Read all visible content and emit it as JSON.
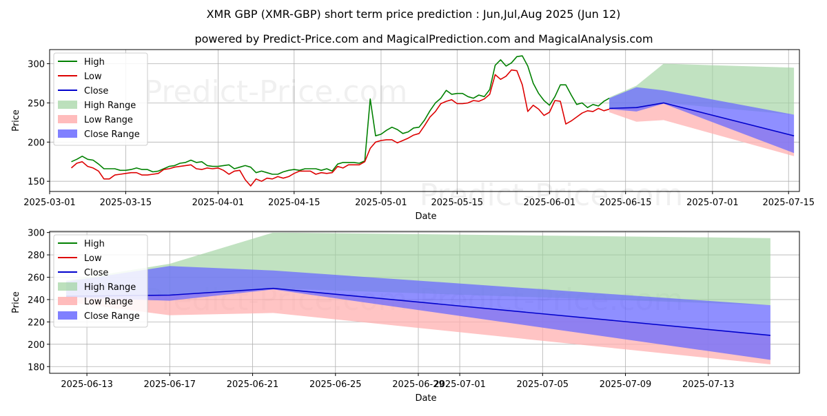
{
  "title_line1": "XMR GBP (XMR-GBP) short term price prediction : Jun,Jul,Aug 2025 (Jun 12)",
  "title_line2": "powered by Predict-Price.com and MagicalPrediction.com and MagicalAnalysis.com",
  "watermark": "Predict-Price.com",
  "colors": {
    "high": "#008000",
    "low": "#dd0000",
    "close": "#0000cc",
    "high_range": "#9fd39f",
    "low_range": "#ffb0b0",
    "close_range": "#6a6aff",
    "grid": "#b0b0b0"
  },
  "chart_data": [
    {
      "type": "line",
      "xlabel": "Date",
      "ylabel": "Price",
      "xlim": [
        "2025-03-01",
        "2025-07-17"
      ],
      "ylim": [
        137,
        318
      ],
      "x_ticks": [
        "2025-03-01",
        "2025-03-15",
        "2025-04-01",
        "2025-04-15",
        "2025-05-01",
        "2025-05-15",
        "2025-06-01",
        "2025-06-15",
        "2025-07-01",
        "2025-07-15"
      ],
      "y_ticks": [
        150,
        200,
        250,
        300
      ],
      "legend": [
        "High",
        "Low",
        "Close",
        "High Range",
        "Low Range",
        "Close Range"
      ],
      "legend_position": "top-left",
      "grid": true,
      "series": [
        {
          "name": "High",
          "x": [
            "2025-03-05",
            "2025-03-06",
            "2025-03-07",
            "2025-03-08",
            "2025-03-09",
            "2025-03-10",
            "2025-03-11",
            "2025-03-12",
            "2025-03-13",
            "2025-03-14",
            "2025-03-15",
            "2025-03-16",
            "2025-03-17",
            "2025-03-18",
            "2025-03-19",
            "2025-03-20",
            "2025-03-21",
            "2025-03-22",
            "2025-03-23",
            "2025-03-24",
            "2025-03-25",
            "2025-03-26",
            "2025-03-27",
            "2025-03-28",
            "2025-03-29",
            "2025-03-30",
            "2025-03-31",
            "2025-04-01",
            "2025-04-02",
            "2025-04-03",
            "2025-04-04",
            "2025-04-05",
            "2025-04-06",
            "2025-04-07",
            "2025-04-08",
            "2025-04-09",
            "2025-04-10",
            "2025-04-11",
            "2025-04-12",
            "2025-04-13",
            "2025-04-14",
            "2025-04-15",
            "2025-04-16",
            "2025-04-17",
            "2025-04-18",
            "2025-04-19",
            "2025-04-20",
            "2025-04-21",
            "2025-04-22",
            "2025-04-23",
            "2025-04-24",
            "2025-04-25",
            "2025-04-26",
            "2025-04-27",
            "2025-04-28",
            "2025-04-29",
            "2025-04-30",
            "2025-05-01",
            "2025-05-02",
            "2025-05-03",
            "2025-05-04",
            "2025-05-05",
            "2025-05-06",
            "2025-05-07",
            "2025-05-08",
            "2025-05-09",
            "2025-05-10",
            "2025-05-11",
            "2025-05-12",
            "2025-05-13",
            "2025-05-14",
            "2025-05-15",
            "2025-05-16",
            "2025-05-17",
            "2025-05-18",
            "2025-05-19",
            "2025-05-20",
            "2025-05-21",
            "2025-05-22",
            "2025-05-23",
            "2025-05-24",
            "2025-05-25",
            "2025-05-26",
            "2025-05-27",
            "2025-05-28",
            "2025-05-29",
            "2025-05-30",
            "2025-05-31",
            "2025-06-01",
            "2025-06-02",
            "2025-06-03",
            "2025-06-04",
            "2025-06-05",
            "2025-06-06",
            "2025-06-07",
            "2025-06-08",
            "2025-06-09",
            "2025-06-10",
            "2025-06-11",
            "2025-06-12"
          ],
          "values": [
            175,
            178,
            182,
            178,
            177,
            172,
            166,
            166,
            166,
            164,
            164,
            165,
            167,
            165,
            165,
            162,
            163,
            166,
            169,
            170,
            173,
            174,
            177,
            174,
            175,
            170,
            169,
            169,
            170,
            171,
            166,
            168,
            170,
            168,
            161,
            163,
            161,
            159,
            159,
            162,
            164,
            165,
            164,
            166,
            166,
            166,
            164,
            166,
            163,
            172,
            174,
            174,
            174,
            173,
            176,
            255,
            208,
            210,
            215,
            219,
            216,
            211,
            213,
            218,
            219,
            228,
            240,
            250,
            256,
            266,
            261,
            262,
            262,
            258,
            256,
            260,
            258,
            267,
            298,
            305,
            297,
            301,
            309,
            310,
            297,
            275,
            262,
            253,
            247,
            258,
            273,
            273,
            260,
            248,
            250,
            244,
            248,
            246,
            252,
            256
          ]
        },
        {
          "name": "Low",
          "x": [
            "2025-03-05",
            "2025-03-06",
            "2025-03-07",
            "2025-03-08",
            "2025-03-09",
            "2025-03-10",
            "2025-03-11",
            "2025-03-12",
            "2025-03-13",
            "2025-03-14",
            "2025-03-15",
            "2025-03-16",
            "2025-03-17",
            "2025-03-18",
            "2025-03-19",
            "2025-03-20",
            "2025-03-21",
            "2025-03-22",
            "2025-03-23",
            "2025-03-24",
            "2025-03-25",
            "2025-03-26",
            "2025-03-27",
            "2025-03-28",
            "2025-03-29",
            "2025-03-30",
            "2025-03-31",
            "2025-04-01",
            "2025-04-02",
            "2025-04-03",
            "2025-04-04",
            "2025-04-05",
            "2025-04-06",
            "2025-04-07",
            "2025-04-08",
            "2025-04-09",
            "2025-04-10",
            "2025-04-11",
            "2025-04-12",
            "2025-04-13",
            "2025-04-14",
            "2025-04-15",
            "2025-04-16",
            "2025-04-17",
            "2025-04-18",
            "2025-04-19",
            "2025-04-20",
            "2025-04-21",
            "2025-04-22",
            "2025-04-23",
            "2025-04-24",
            "2025-04-25",
            "2025-04-26",
            "2025-04-27",
            "2025-04-28",
            "2025-04-29",
            "2025-04-30",
            "2025-05-01",
            "2025-05-02",
            "2025-05-03",
            "2025-05-04",
            "2025-05-05",
            "2025-05-06",
            "2025-05-07",
            "2025-05-08",
            "2025-05-09",
            "2025-05-10",
            "2025-05-11",
            "2025-05-12",
            "2025-05-13",
            "2025-05-14",
            "2025-05-15",
            "2025-05-16",
            "2025-05-17",
            "2025-05-18",
            "2025-05-19",
            "2025-05-20",
            "2025-05-21",
            "2025-05-22",
            "2025-05-23",
            "2025-05-24",
            "2025-05-25",
            "2025-05-26",
            "2025-05-27",
            "2025-05-28",
            "2025-05-29",
            "2025-05-30",
            "2025-05-31",
            "2025-06-01",
            "2025-06-02",
            "2025-06-03",
            "2025-06-04",
            "2025-06-05",
            "2025-06-06",
            "2025-06-07",
            "2025-06-08",
            "2025-06-09",
            "2025-06-10",
            "2025-06-11",
            "2025-06-12"
          ],
          "values": [
            167,
            173,
            175,
            169,
            167,
            163,
            153,
            153,
            158,
            159,
            160,
            161,
            161,
            158,
            158,
            159,
            160,
            165,
            166,
            168,
            169,
            170,
            171,
            166,
            165,
            167,
            166,
            167,
            164,
            159,
            163,
            164,
            152,
            144,
            153,
            150,
            154,
            153,
            156,
            154,
            156,
            160,
            163,
            163,
            163,
            159,
            161,
            160,
            161,
            169,
            167,
            171,
            171,
            171,
            175,
            192,
            200,
            202,
            203,
            203,
            199,
            202,
            205,
            209,
            211,
            221,
            232,
            239,
            249,
            252,
            254,
            249,
            249,
            250,
            253,
            252,
            255,
            261,
            286,
            280,
            284,
            292,
            291,
            273,
            239,
            247,
            242,
            234,
            238,
            253,
            252,
            223,
            227,
            232,
            237,
            240,
            239,
            243,
            240,
            242
          ]
        },
        {
          "name": "Close",
          "x": [
            "2025-06-12",
            "2025-06-17",
            "2025-06-22",
            "2025-07-16"
          ],
          "values": [
            243,
            244,
            250,
            208
          ]
        }
      ],
      "ranges": [
        {
          "name": "High Range",
          "x": [
            "2025-06-12",
            "2025-06-17",
            "2025-06-22",
            "2025-07-16"
          ],
          "upper": [
            257,
            272,
            300,
            295
          ],
          "lower": [
            244,
            244,
            250,
            235
          ]
        },
        {
          "name": "Low Range",
          "x": [
            "2025-06-12",
            "2025-06-17",
            "2025-06-22",
            "2025-07-16"
          ],
          "upper": [
            243,
            244,
            250,
            208
          ],
          "lower": [
            238,
            226,
            228,
            182
          ]
        },
        {
          "name": "Close Range",
          "x": [
            "2025-06-12",
            "2025-06-17",
            "2025-06-22",
            "2025-07-16"
          ],
          "upper": [
            256,
            270,
            266,
            235
          ],
          "lower": [
            242,
            239,
            249,
            186
          ]
        }
      ]
    },
    {
      "type": "line",
      "xlabel": "Date",
      "ylabel": "Price",
      "xlim": [
        "2025-06-11.2",
        "2025-07-17.4"
      ],
      "ylim": [
        174,
        301
      ],
      "x_ticks": [
        "2025-06-13",
        "2025-06-17",
        "2025-06-21",
        "2025-06-25",
        "2025-06-29",
        "2025-07-01",
        "2025-07-05",
        "2025-07-09",
        "2025-07-13"
      ],
      "y_ticks": [
        180,
        200,
        220,
        240,
        260,
        280,
        300
      ],
      "legend": [
        "High",
        "Low",
        "Close",
        "High Range",
        "Low Range",
        "Close Range"
      ],
      "legend_position": "top-left",
      "grid": true,
      "series": [
        {
          "name": "Close",
          "x": [
            "2025-06-12",
            "2025-06-17",
            "2025-06-22",
            "2025-07-16"
          ],
          "values": [
            243,
            244,
            250,
            208
          ]
        }
      ],
      "ranges": [
        {
          "name": "High Range",
          "x": [
            "2025-06-12",
            "2025-06-17",
            "2025-06-22",
            "2025-07-16"
          ],
          "upper": [
            257,
            272,
            300,
            295
          ],
          "lower": [
            244,
            244,
            250,
            235
          ]
        },
        {
          "name": "Low Range",
          "x": [
            "2025-06-12",
            "2025-06-17",
            "2025-06-22",
            "2025-07-16"
          ],
          "upper": [
            243,
            244,
            250,
            208
          ],
          "lower": [
            238,
            226,
            228,
            182
          ]
        },
        {
          "name": "Close Range",
          "x": [
            "2025-06-12",
            "2025-06-17",
            "2025-06-22",
            "2025-07-16"
          ],
          "upper": [
            256,
            270,
            266,
            235
          ],
          "lower": [
            242,
            239,
            249,
            186
          ]
        }
      ]
    }
  ]
}
